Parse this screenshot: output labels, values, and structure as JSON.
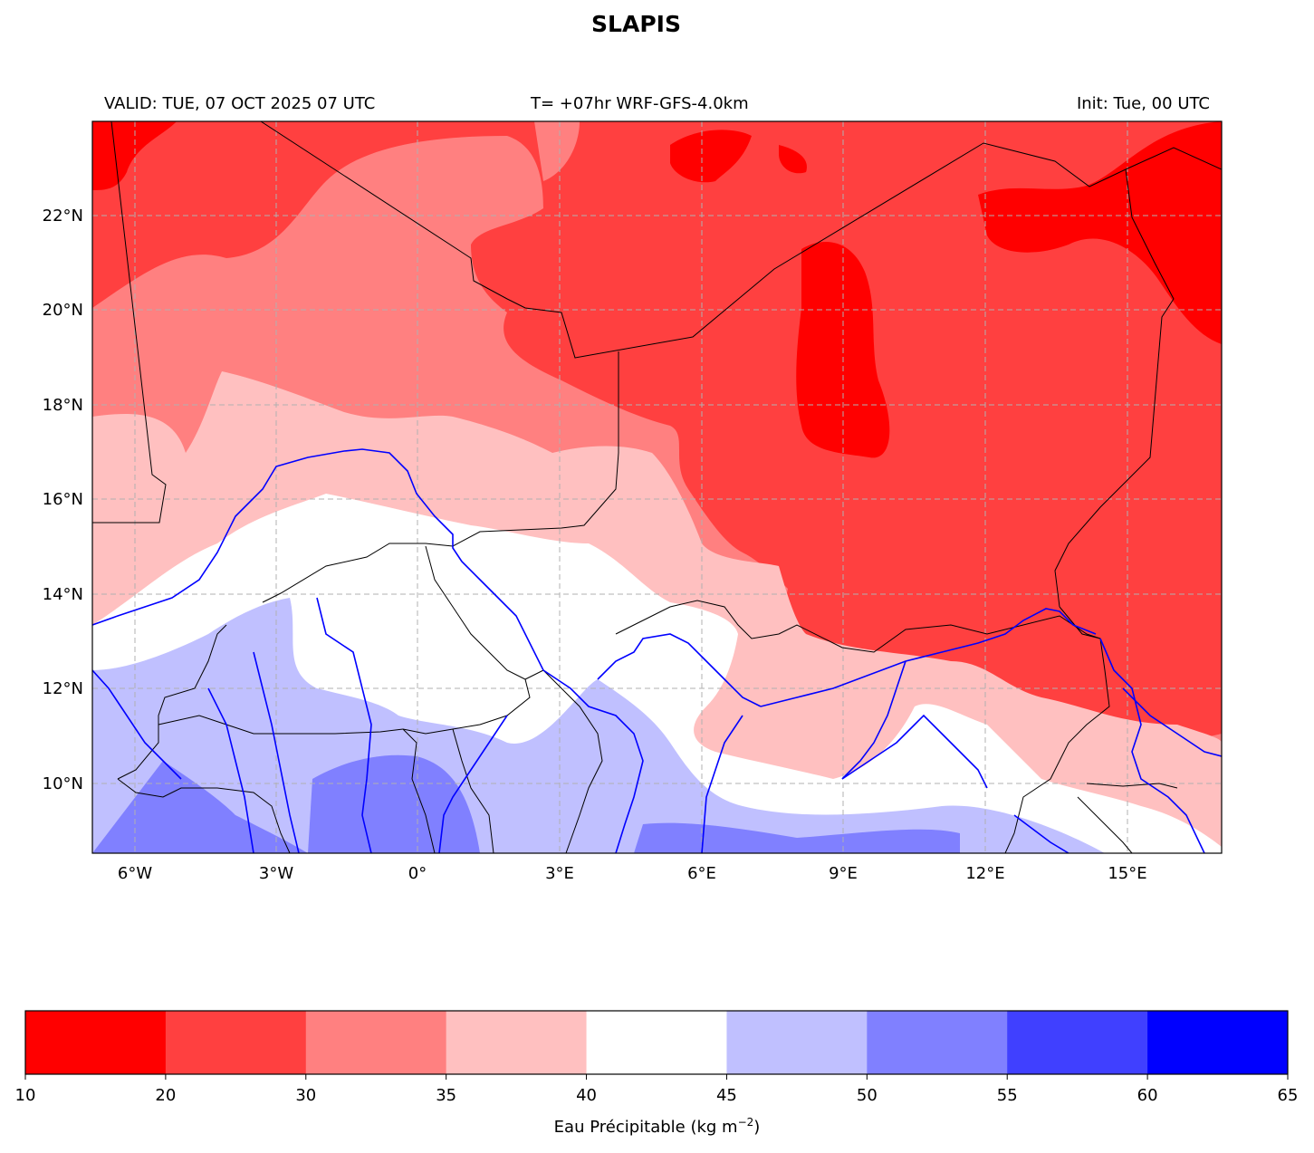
{
  "header": {
    "title": "SLAPIS",
    "valid": "VALID: TUE, 07 OCT 2025 07 UTC",
    "run": "T= +07hr WRF-GFS-4.0km",
    "init": "Init: Tue, 00 UTC"
  },
  "map": {
    "lon_range": [
      -7,
      17
    ],
    "lat_range": [
      8.5,
      24
    ],
    "lon_ticks": [
      "6°W",
      "3°W",
      "0°",
      "3°E",
      "6°E",
      "9°E",
      "12°E",
      "15°E"
    ],
    "lat_ticks": [
      "22°N",
      "20°N",
      "18°N",
      "16°N",
      "14°N",
      "12°N",
      "10°N"
    ],
    "gridlines": "dashed gray",
    "boundaries_color": "#000000",
    "rivers_color": "#0000ff"
  },
  "colorbar": {
    "label_main": "Eau Précipitable (kg m",
    "label_exp": "−2",
    "label_close": ")",
    "levels": [
      "10",
      "20",
      "30",
      "35",
      "40",
      "45",
      "50",
      "55",
      "60",
      "65"
    ],
    "colors": [
      "#ff0000",
      "#ff4040",
      "#ff8080",
      "#ffc0c0",
      "#ffffff",
      "#c0c0ff",
      "#8080ff",
      "#4040ff",
      "#0000ff"
    ]
  }
}
